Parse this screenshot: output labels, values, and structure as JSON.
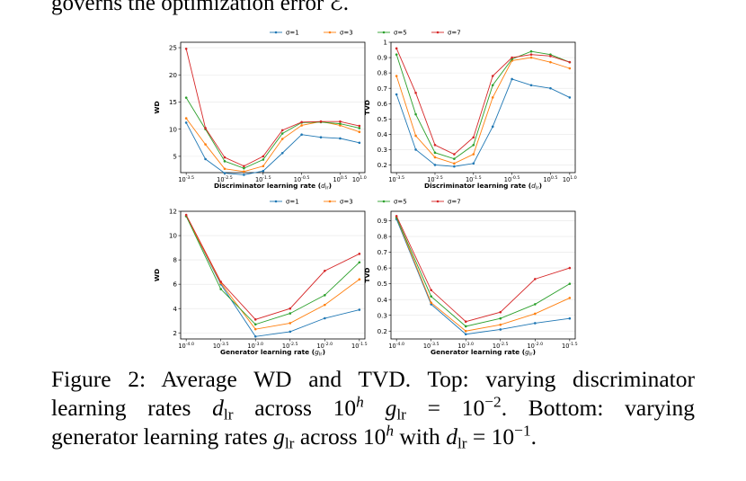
{
  "body_text_top": "governs the optimization error ℰ.",
  "legend_entries": [
    "σ=1",
    "σ=3",
    "σ=5",
    "σ=7"
  ],
  "series_colors": [
    "#1f77b4",
    "#ff7f0e",
    "#2ca02c",
    "#d62728"
  ],
  "chart_data": [
    {
      "type": "line",
      "panel": "top-left",
      "xlabel": "Discriminator learning rate (d_lr)",
      "ylabel": "WD",
      "x_exponents": [
        -3.5,
        -3.0,
        -2.5,
        -2.0,
        -1.5,
        -1.0,
        -0.5,
        0.0,
        0.5,
        1.0
      ],
      "x_tick_labels": [
        "10^{-3.5}",
        "10^{-2.5}",
        "10^{-1.5}",
        "10^{-0.5}",
        "10^{0.5}",
        "10^{1.0}"
      ],
      "ylim": [
        2,
        26
      ],
      "y_ticks": [
        5,
        10,
        15,
        20,
        25
      ],
      "series": [
        {
          "name": "σ=1",
          "values": [
            11.2,
            4.5,
            1.9,
            1.6,
            2.3,
            5.6,
            9.0,
            8.5,
            8.3,
            7.5
          ]
        },
        {
          "name": "σ=3",
          "values": [
            12.0,
            7.2,
            2.7,
            2.2,
            3.2,
            8.2,
            10.7,
            11.4,
            10.7,
            9.5
          ]
        },
        {
          "name": "σ=5",
          "values": [
            15.8,
            10.0,
            4.1,
            2.8,
            4.4,
            9.2,
            11.2,
            11.3,
            11.0,
            10.2
          ]
        },
        {
          "name": "σ=7",
          "values": [
            24.8,
            10.2,
            4.8,
            3.2,
            5.0,
            9.8,
            11.3,
            11.4,
            11.4,
            10.6
          ]
        }
      ]
    },
    {
      "type": "line",
      "panel": "top-right",
      "xlabel": "Discriminator learning rate (d_lr)",
      "ylabel": "TVD",
      "x_exponents": [
        -3.5,
        -3.0,
        -2.5,
        -2.0,
        -1.5,
        -1.0,
        -0.5,
        0.0,
        0.5,
        1.0
      ],
      "x_tick_labels": [
        "10^{-3.5}",
        "10^{-2.5}",
        "10^{-1.5}",
        "10^{-0.5}",
        "10^{0.5}",
        "10^{1.0}"
      ],
      "ylim": [
        0.15,
        1.0
      ],
      "y_ticks": [
        0.2,
        0.3,
        0.4,
        0.5,
        0.6,
        0.7,
        0.8,
        0.9,
        1.0
      ],
      "series": [
        {
          "name": "σ=1",
          "values": [
            0.66,
            0.3,
            0.2,
            0.19,
            0.21,
            0.45,
            0.76,
            0.72,
            0.7,
            0.64
          ]
        },
        {
          "name": "σ=3",
          "values": [
            0.78,
            0.39,
            0.25,
            0.21,
            0.27,
            0.64,
            0.88,
            0.9,
            0.87,
            0.83
          ]
        },
        {
          "name": "σ=5",
          "values": [
            0.92,
            0.53,
            0.28,
            0.24,
            0.33,
            0.72,
            0.89,
            0.94,
            0.92,
            0.87
          ]
        },
        {
          "name": "σ=7",
          "values": [
            0.96,
            0.67,
            0.33,
            0.27,
            0.38,
            0.78,
            0.9,
            0.92,
            0.91,
            0.87
          ]
        }
      ]
    },
    {
      "type": "line",
      "panel": "bottom-left",
      "xlabel": "Generator learning rate (g_lr)",
      "ylabel": "WD",
      "x_exponents": [
        -4.0,
        -3.5,
        -3.0,
        -2.5,
        -2.0,
        -1.5
      ],
      "x_tick_labels": [
        "10^{-4.0}",
        "10^{-3.5}",
        "10^{-3.0}",
        "10^{-2.5}",
        "10^{-2.0}",
        "10^{-1.5}"
      ],
      "ylim": [
        1.5,
        12.0
      ],
      "y_ticks": [
        2,
        4,
        6,
        8,
        10,
        12
      ],
      "series": [
        {
          "name": "σ=1",
          "values": [
            11.6,
            6.0,
            1.7,
            2.1,
            3.2,
            3.9
          ]
        },
        {
          "name": "σ=3",
          "values": [
            11.6,
            6.1,
            2.3,
            2.8,
            4.3,
            6.4
          ]
        },
        {
          "name": "σ=5",
          "values": [
            11.6,
            5.6,
            2.7,
            3.6,
            5.1,
            7.8
          ]
        },
        {
          "name": "σ=7",
          "values": [
            11.7,
            6.2,
            3.1,
            4.0,
            7.1,
            8.5
          ]
        }
      ]
    },
    {
      "type": "line",
      "panel": "bottom-right",
      "xlabel": "Generator learning rate (g_lr)",
      "ylabel": "TVD",
      "x_exponents": [
        -4.0,
        -3.5,
        -3.0,
        -2.5,
        -2.0,
        -1.5
      ],
      "x_tick_labels": [
        "10^{-4.0}",
        "10^{-3.5}",
        "10^{-3.0}",
        "10^{-2.5}",
        "10^{-2.0}",
        "10^{-1.5}"
      ],
      "ylim": [
        0.15,
        0.96
      ],
      "y_ticks": [
        0.2,
        0.3,
        0.4,
        0.5,
        0.6,
        0.7,
        0.8,
        0.9
      ],
      "series": [
        {
          "name": "σ=1",
          "values": [
            0.91,
            0.37,
            0.18,
            0.21,
            0.25,
            0.28
          ]
        },
        {
          "name": "σ=3",
          "values": [
            0.92,
            0.38,
            0.2,
            0.24,
            0.31,
            0.41
          ]
        },
        {
          "name": "σ=5",
          "values": [
            0.92,
            0.42,
            0.23,
            0.28,
            0.37,
            0.5
          ]
        },
        {
          "name": "σ=7",
          "values": [
            0.93,
            0.46,
            0.26,
            0.32,
            0.53,
            0.6
          ]
        }
      ]
    }
  ],
  "caption": {
    "line1": "Figure 2: Average WD and TVD. Top: varying discriminator",
    "line2_pre": "learning rates ",
    "d": "d",
    "lr": "lr",
    "g": "g",
    "across": " across 10",
    "exp_h": "h",
    "eq_neg2": " = 10",
    "exp_m2": "−2",
    "line2_post": ". Bottom: varying",
    "line3_pre": "generator learning rates ",
    "with": " with ",
    "eq_neg1": " = 10",
    "exp_m1": "−1",
    "end": "."
  }
}
